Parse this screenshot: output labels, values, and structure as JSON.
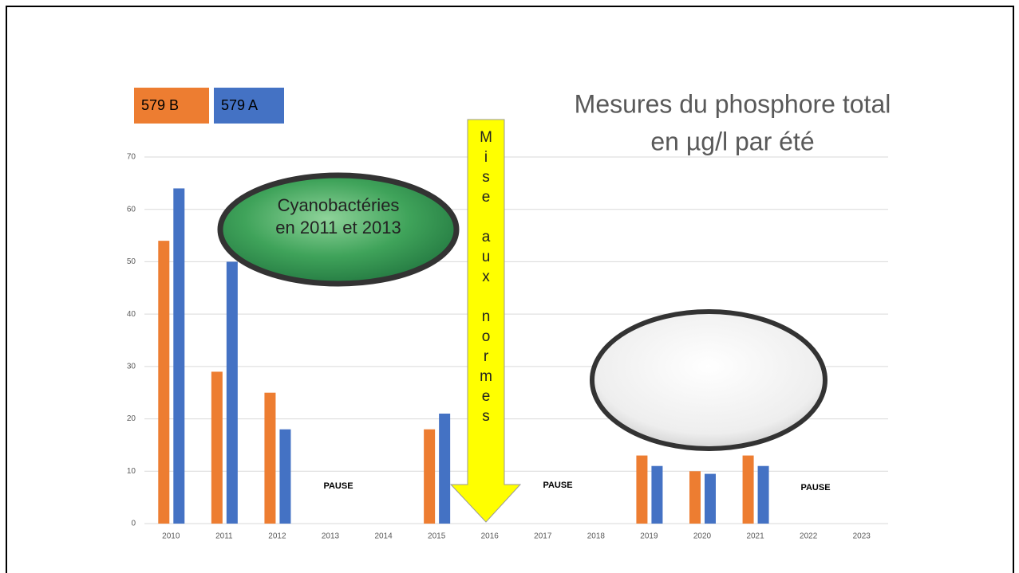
{
  "chart_data": {
    "type": "bar",
    "title": [
      "Mesures du phosphore total",
      "en µg/l par été"
    ],
    "categories": [
      "2010",
      "2011",
      "2012",
      "2013",
      "2014",
      "2015",
      "2016",
      "2017",
      "2018",
      "2019",
      "2020",
      "2021",
      "2022",
      "2023"
    ],
    "series": [
      {
        "name": "579 B",
        "color": "#ed7d31",
        "values": [
          54,
          29,
          25,
          null,
          null,
          18,
          null,
          null,
          null,
          13,
          10,
          13,
          null,
          null
        ]
      },
      {
        "name": "579 A",
        "color": "#4472c4",
        "values": [
          64,
          50,
          18,
          null,
          null,
          21,
          null,
          null,
          null,
          11,
          9.5,
          11,
          null,
          null
        ]
      }
    ],
    "ylim": [
      0,
      70
    ],
    "yticks": [
      0,
      10,
      20,
      30,
      40,
      50,
      60,
      70
    ],
    "grid": true,
    "annotations": {
      "cyano": [
        "Cyanobactéries",
        "en 2011 et 2013"
      ],
      "arrow": "Mise aux normes",
      "pauses": [
        "PAUSE",
        "PAUSE",
        "PAUSE"
      ]
    }
  }
}
